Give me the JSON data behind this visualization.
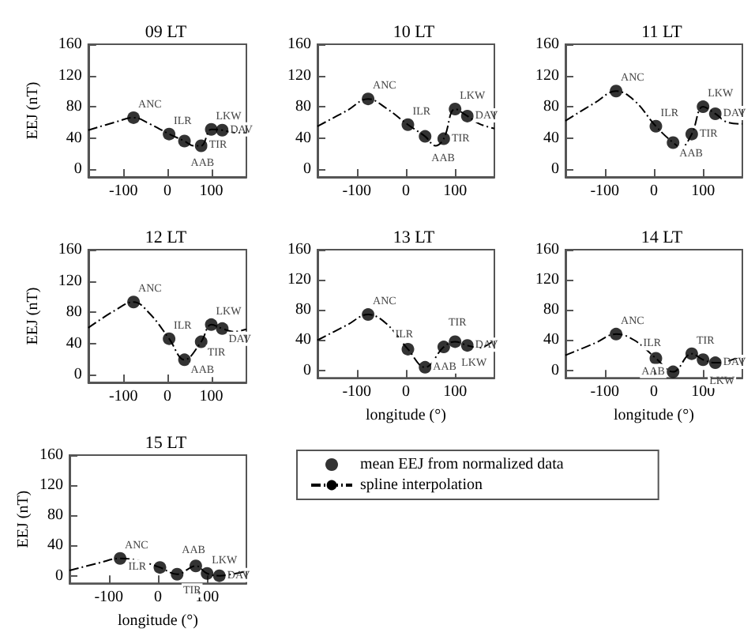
{
  "chart_data": [
    {
      "type": "scatter",
      "title": "09 LT",
      "ylabel": "EEJ (nT)",
      "xlim": [
        -180,
        180
      ],
      "ylim": [
        -10,
        160
      ],
      "xticks": [
        -100,
        0,
        100
      ],
      "yticks": [
        0,
        40,
        80,
        120,
        160
      ],
      "series": [
        {
          "type": "scatter",
          "marker": "circle",
          "color": "#000000",
          "x": [
            -77,
            4,
            39,
            77,
            100,
            125
          ],
          "values": [
            66,
            45,
            36,
            30,
            51,
            50
          ]
        },
        {
          "type": "line",
          "color": "#000000",
          "line_style": "dashed",
          "x": [
            -180,
            -120,
            -77,
            -40,
            4,
            39,
            60,
            77,
            100,
            125,
            150,
            180
          ],
          "values": [
            50,
            60,
            66,
            58,
            45,
            36,
            30,
            30,
            51,
            50,
            47,
            46
          ]
        }
      ],
      "annotations": [
        {
          "text": "ANC",
          "x": -77,
          "y": 66
        },
        {
          "text": "ILR",
          "x": 4,
          "y": 45
        },
        {
          "text": "AAB",
          "x": 39,
          "y": 36
        },
        {
          "text": "TIR",
          "x": 77,
          "y": 30
        },
        {
          "text": "LKW",
          "x": 100,
          "y": 51
        },
        {
          "text": "DAV",
          "x": 125,
          "y": 50
        }
      ]
    },
    {
      "type": "scatter",
      "title": "10 LT",
      "xlim": [
        -180,
        180
      ],
      "ylim": [
        -10,
        160
      ],
      "xticks": [
        -100,
        0,
        100
      ],
      "yticks": [
        0,
        40,
        80,
        120,
        160
      ],
      "series": [
        {
          "type": "scatter",
          "marker": "circle",
          "color": "#000000",
          "x": [
            -77,
            4,
            39,
            77,
            100,
            125
          ],
          "values": [
            90,
            57,
            42,
            39,
            77,
            68
          ]
        },
        {
          "type": "line",
          "color": "#000000",
          "line_style": "dashed",
          "x": [
            -180,
            -120,
            -77,
            -40,
            4,
            39,
            60,
            77,
            100,
            125,
            150,
            180
          ],
          "values": [
            55,
            75,
            90,
            78,
            57,
            42,
            30,
            39,
            77,
            68,
            58,
            52
          ]
        }
      ],
      "annotations": [
        {
          "text": "ANC",
          "x": -77,
          "y": 90
        },
        {
          "text": "ILR",
          "x": 4,
          "y": 57
        },
        {
          "text": "AAB",
          "x": 39,
          "y": 42
        },
        {
          "text": "TIR",
          "x": 77,
          "y": 39
        },
        {
          "text": "LKW",
          "x": 100,
          "y": 77
        },
        {
          "text": "DAV",
          "x": 125,
          "y": 68
        }
      ]
    },
    {
      "type": "scatter",
      "title": "11 LT",
      "xlim": [
        -180,
        180
      ],
      "ylim": [
        -10,
        160
      ],
      "xticks": [
        -100,
        0,
        100
      ],
      "yticks": [
        0,
        40,
        80,
        120,
        160
      ],
      "series": [
        {
          "type": "scatter",
          "marker": "circle",
          "color": "#000000",
          "x": [
            -77,
            4,
            39,
            77,
            100,
            125
          ],
          "values": [
            100,
            55,
            34,
            45,
            80,
            71
          ]
        },
        {
          "type": "line",
          "color": "#000000",
          "line_style": "dashed",
          "x": [
            -180,
            -120,
            -77,
            -40,
            4,
            39,
            55,
            77,
            100,
            125,
            150,
            180
          ],
          "values": [
            62,
            85,
            100,
            88,
            55,
            34,
            28,
            45,
            80,
            71,
            60,
            58
          ]
        }
      ],
      "annotations": [
        {
          "text": "ANC",
          "x": -77,
          "y": 100
        },
        {
          "text": "ILR",
          "x": 4,
          "y": 55
        },
        {
          "text": "AAB",
          "x": 39,
          "y": 34
        },
        {
          "text": "TIR",
          "x": 77,
          "y": 45
        },
        {
          "text": "LKW",
          "x": 100,
          "y": 80
        },
        {
          "text": "DAV",
          "x": 125,
          "y": 71
        }
      ]
    },
    {
      "type": "scatter",
      "title": "12 LT",
      "ylabel": "EEJ (nT)",
      "xlim": [
        -180,
        180
      ],
      "ylim": [
        -10,
        160
      ],
      "xticks": [
        -100,
        0,
        100
      ],
      "yticks": [
        0,
        40,
        80,
        120,
        160
      ],
      "series": [
        {
          "type": "scatter",
          "marker": "circle",
          "color": "#000000",
          "x": [
            -77,
            4,
            39,
            77,
            100,
            125
          ],
          "values": [
            93,
            46,
            19,
            42,
            64,
            59
          ]
        },
        {
          "type": "line",
          "color": "#000000",
          "line_style": "dashed",
          "x": [
            -180,
            -120,
            -77,
            -40,
            4,
            39,
            77,
            100,
            125,
            150,
            180
          ],
          "values": [
            60,
            82,
            93,
            78,
            46,
            19,
            42,
            64,
            59,
            55,
            58
          ]
        }
      ],
      "annotations": [
        {
          "text": "ANC",
          "x": -77,
          "y": 93
        },
        {
          "text": "ILR",
          "x": 4,
          "y": 46
        },
        {
          "text": "AAB",
          "x": 39,
          "y": 19
        },
        {
          "text": "TIR",
          "x": 77,
          "y": 42
        },
        {
          "text": "LKW",
          "x": 100,
          "y": 64
        },
        {
          "text": "DAV",
          "x": 125,
          "y": 59
        }
      ]
    },
    {
      "type": "scatter",
      "title": "13 LT",
      "xlabel": "longitude (°)",
      "xlim": [
        -180,
        180
      ],
      "ylim": [
        -10,
        160
      ],
      "xticks": [
        -100,
        0,
        100
      ],
      "yticks": [
        0,
        40,
        80,
        120,
        160
      ],
      "series": [
        {
          "type": "scatter",
          "marker": "circle",
          "color": "#000000",
          "x": [
            -77,
            4,
            39,
            77,
            100,
            125
          ],
          "values": [
            74,
            28,
            4,
            31,
            38,
            33
          ]
        },
        {
          "type": "line",
          "color": "#000000",
          "line_style": "dashed",
          "x": [
            -180,
            -120,
            -77,
            -40,
            4,
            39,
            77,
            100,
            125,
            150,
            180
          ],
          "values": [
            40,
            60,
            74,
            62,
            28,
            4,
            31,
            38,
            33,
            30,
            40
          ]
        }
      ],
      "annotations": [
        {
          "text": "ANC",
          "x": -77,
          "y": 74
        },
        {
          "text": "ILR",
          "x": 4,
          "y": 28
        },
        {
          "text": "AAB",
          "x": 39,
          "y": 4
        },
        {
          "text": "TIR",
          "x": 77,
          "y": 31
        },
        {
          "text": "LKW",
          "x": 100,
          "y": 38
        },
        {
          "text": "DAV",
          "x": 125,
          "y": 33
        }
      ]
    },
    {
      "type": "scatter",
      "title": "14 LT",
      "xlabel": "longitude (°)",
      "xlim": [
        -180,
        180
      ],
      "ylim": [
        -10,
        160
      ],
      "xticks": [
        -100,
        0,
        100
      ],
      "yticks": [
        0,
        40,
        80,
        120,
        160
      ],
      "series": [
        {
          "type": "scatter",
          "marker": "circle",
          "color": "#000000",
          "x": [
            -77,
            4,
            39,
            77,
            100,
            125
          ],
          "values": [
            48,
            16,
            -2,
            22,
            14,
            10
          ]
        },
        {
          "type": "line",
          "color": "#000000",
          "line_style": "dashed",
          "x": [
            -180,
            -120,
            -77,
            -40,
            4,
            39,
            77,
            100,
            125,
            150,
            180
          ],
          "values": [
            20,
            36,
            48,
            40,
            16,
            -2,
            22,
            14,
            10,
            12,
            20
          ]
        }
      ],
      "annotations": [
        {
          "text": "ANC",
          "x": -77,
          "y": 48
        },
        {
          "text": "ILR",
          "x": 4,
          "y": 16
        },
        {
          "text": "AAB",
          "x": 39,
          "y": -2
        },
        {
          "text": "TIR",
          "x": 77,
          "y": 22
        },
        {
          "text": "LKW",
          "x": 100,
          "y": 14
        },
        {
          "text": "DAV",
          "x": 125,
          "y": 10
        }
      ]
    },
    {
      "type": "scatter",
      "title": "15 LT",
      "xlabel": "longitude (°)",
      "ylabel": "EEJ (nT)",
      "xlim": [
        -180,
        180
      ],
      "ylim": [
        -10,
        160
      ],
      "xticks": [
        -100,
        0,
        100
      ],
      "yticks": [
        0,
        40,
        80,
        120,
        160
      ],
      "legend": "right",
      "series": [
        {
          "type": "scatter",
          "marker": "circle",
          "name": "mean EEJ from normalized data",
          "color": "#000000",
          "x": [
            -77,
            4,
            39,
            77,
            100,
            125
          ],
          "values": [
            23,
            11,
            2,
            13,
            3,
            0
          ]
        },
        {
          "type": "line",
          "name": "spline interpolation",
          "color": "#000000",
          "line_style": "dashed",
          "x": [
            -180,
            -120,
            -77,
            -40,
            4,
            39,
            77,
            100,
            125,
            150,
            180
          ],
          "values": [
            7,
            17,
            23,
            20,
            11,
            2,
            13,
            3,
            0,
            2,
            6
          ]
        }
      ],
      "annotations": [
        {
          "text": "ANC",
          "x": -77,
          "y": 23
        },
        {
          "text": "ILR",
          "x": 4,
          "y": 11
        },
        {
          "text": "AAB",
          "x": 39,
          "y": 2
        },
        {
          "text": "TIR",
          "x": 77,
          "y": 13
        },
        {
          "text": "LKW",
          "x": 100,
          "y": 3
        },
        {
          "text": "DAV",
          "x": 125,
          "y": 0
        }
      ]
    }
  ]
}
